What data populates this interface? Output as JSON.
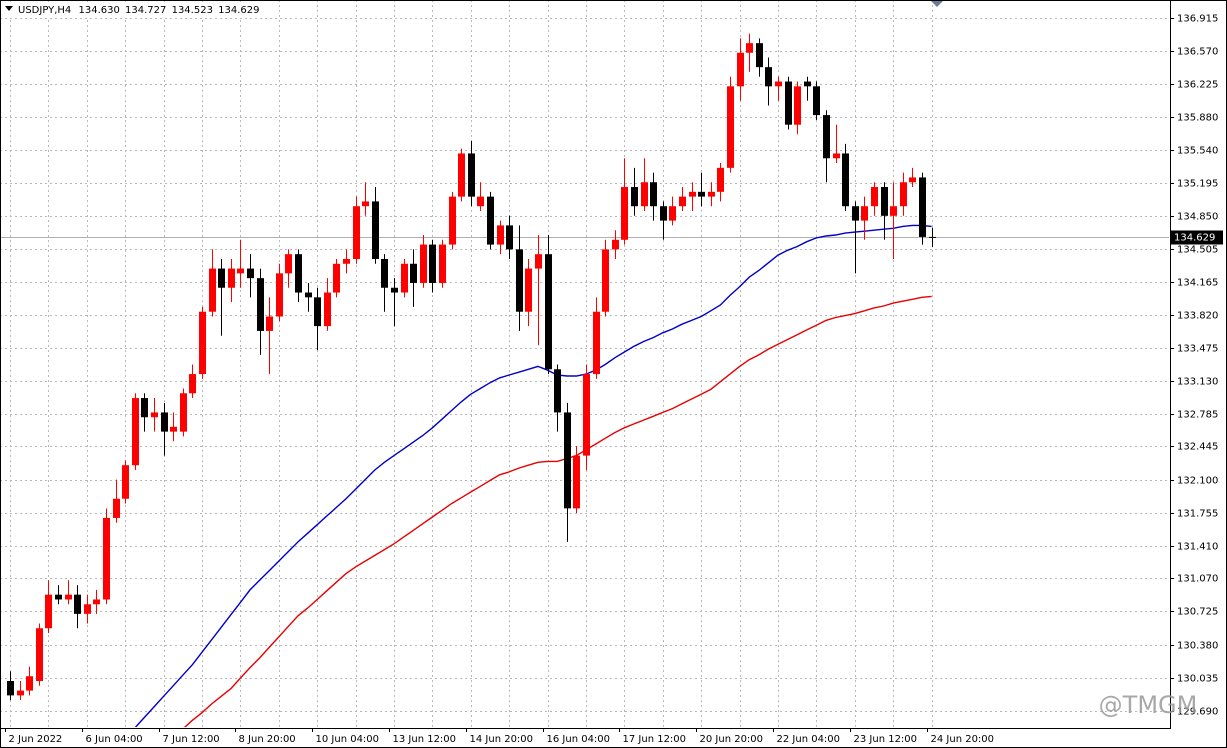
{
  "chart_data": {
    "type": "candlestick",
    "title": "USDJPY,H4",
    "quote_labels": [
      "134.630",
      "134.727",
      "134.523",
      "134.629"
    ],
    "watermark": "@TMGM",
    "up_color": "#ff0000",
    "down_color": "#000000",
    "grid": true,
    "ylim": [
      129.51,
      137.1
    ],
    "yticks": [
      136.915,
      {
        "value": 136.57,
        "label": "136.570"
      },
      136.225,
      {
        "value": 135.88,
        "label": "135.880"
      },
      {
        "value": 135.54,
        "label": "135.540"
      },
      135.195,
      {
        "value": 134.85,
        "label": "134.850"
      },
      134.505,
      134.165,
      {
        "value": 133.82,
        "label": "133.820"
      },
      133.475,
      {
        "value": 133.13,
        "label": "133.130"
      },
      132.785,
      132.445,
      {
        "value": 132.1,
        "label": "132.100"
      },
      131.755,
      {
        "value": 131.41,
        "label": "131.410"
      },
      {
        "value": 131.07,
        "label": "131.070"
      },
      130.725,
      {
        "value": 130.38,
        "label": "130.380"
      },
      130.035,
      {
        "value": 129.69,
        "label": "129.690"
      }
    ],
    "current_price": {
      "value": 134.629,
      "label": "134.629"
    },
    "categories": [
      "2 Jun 2022",
      null,
      null,
      null,
      null,
      null,
      null,
      null,
      "6 Jun 04:00",
      null,
      null,
      null,
      null,
      null,
      null,
      null,
      "7 Jun 12:00",
      null,
      null,
      null,
      null,
      null,
      null,
      null,
      "8 Jun 20:00",
      null,
      null,
      null,
      null,
      null,
      null,
      null,
      "10 Jun 04:00",
      null,
      null,
      null,
      null,
      null,
      null,
      null,
      "13 Jun 12:00",
      null,
      null,
      null,
      null,
      null,
      null,
      null,
      "14 Jun 20:00",
      null,
      null,
      null,
      null,
      null,
      null,
      null,
      "16 Jun 04:00",
      null,
      null,
      null,
      null,
      null,
      null,
      null,
      "17 Jun 12:00",
      null,
      null,
      null,
      null,
      null,
      null,
      null,
      "20 Jun 20:00",
      null,
      null,
      null,
      null,
      null,
      null,
      null,
      "22 Jun 04:00",
      null,
      null,
      null,
      null,
      null,
      null,
      null,
      "23 Jun 12:00",
      null,
      null,
      null,
      null,
      null,
      null,
      null,
      "24 Jun 20:00"
    ],
    "ohlc": {
      "open": [
        130.0,
        129.85,
        129.9,
        130.0,
        130.55,
        130.9,
        130.85,
        130.9,
        130.7,
        130.8,
        130.85,
        131.7,
        131.9,
        132.25,
        132.95,
        132.75,
        132.8,
        132.6,
        132.6,
        133.0,
        133.2,
        133.85,
        134.3,
        134.1,
        134.25,
        134.3,
        134.2,
        133.65,
        133.8,
        134.25,
        134.45,
        134.05,
        134.0,
        133.7,
        134.05,
        134.35,
        134.4,
        134.95,
        135.0,
        134.4,
        134.1,
        134.05,
        134.35,
        134.15,
        134.55,
        134.15,
        134.55,
        135.05,
        135.5,
        134.95,
        135.05,
        134.55,
        134.75,
        134.5,
        133.85,
        134.3,
        134.45,
        133.25,
        132.8,
        131.8,
        132.35,
        133.2,
        133.85,
        134.5,
        134.6,
        135.15,
        134.95,
        135.2,
        134.95,
        134.8,
        134.95,
        135.05,
        135.1,
        135.05,
        135.1,
        135.35,
        136.2,
        136.55,
        136.65,
        136.4,
        136.2,
        136.25,
        135.8,
        136.25,
        136.2,
        135.9,
        135.45,
        135.5,
        134.95,
        134.8,
        134.95,
        135.15,
        134.85,
        134.95,
        135.2,
        135.25,
        134.63
      ],
      "high": [
        130.1,
        130.0,
        130.15,
        130.6,
        131.05,
        131.0,
        131.05,
        131.0,
        130.9,
        130.95,
        131.8,
        132.1,
        132.3,
        133.0,
        133.0,
        132.95,
        132.9,
        132.8,
        133.05,
        133.3,
        133.9,
        134.5,
        134.4,
        134.4,
        134.6,
        134.45,
        134.3,
        134.0,
        134.35,
        134.5,
        134.5,
        134.15,
        134.1,
        134.2,
        134.4,
        134.5,
        135.05,
        135.2,
        135.15,
        134.45,
        134.2,
        134.4,
        134.5,
        134.65,
        134.6,
        134.6,
        135.1,
        135.55,
        135.63,
        135.2,
        135.1,
        134.8,
        134.85,
        134.75,
        134.4,
        134.65,
        134.65,
        133.3,
        132.9,
        132.45,
        133.3,
        134.0,
        134.6,
        134.7,
        135.45,
        135.35,
        135.45,
        135.3,
        135.0,
        135.05,
        135.15,
        135.2,
        135.3,
        135.2,
        135.4,
        136.3,
        136.7,
        136.75,
        136.7,
        136.5,
        136.3,
        136.3,
        136.25,
        136.3,
        136.25,
        135.95,
        135.8,
        135.6,
        135.0,
        135.05,
        135.2,
        135.2,
        135.2,
        135.3,
        135.35,
        135.3,
        134.727
      ],
      "low": [
        129.8,
        129.8,
        129.85,
        129.95,
        130.5,
        130.8,
        130.8,
        130.55,
        130.6,
        130.7,
        130.8,
        131.65,
        131.85,
        132.2,
        132.6,
        132.6,
        132.35,
        132.5,
        132.55,
        132.95,
        133.15,
        133.8,
        133.6,
        133.95,
        134.1,
        134.0,
        133.4,
        133.2,
        133.75,
        134.1,
        133.95,
        133.85,
        133.45,
        133.65,
        134.0,
        134.25,
        134.35,
        134.85,
        134.35,
        133.85,
        133.7,
        134.0,
        133.9,
        134.1,
        134.05,
        134.1,
        134.5,
        135.0,
        134.95,
        134.9,
        134.5,
        134.45,
        134.4,
        133.65,
        133.7,
        133.5,
        133.2,
        132.6,
        131.45,
        131.75,
        132.2,
        133.15,
        133.8,
        134.4,
        134.55,
        134.85,
        134.9,
        134.8,
        134.6,
        134.75,
        134.9,
        134.9,
        134.95,
        134.95,
        135.0,
        135.3,
        136.05,
        136.35,
        136.3,
        136.0,
        136.05,
        135.75,
        135.7,
        136.05,
        135.85,
        135.2,
        135.4,
        134.9,
        134.25,
        134.6,
        134.85,
        134.6,
        134.4,
        134.85,
        135.15,
        134.55,
        134.523
      ],
      "close": [
        129.85,
        129.9,
        130.05,
        130.55,
        130.9,
        130.85,
        130.9,
        130.7,
        130.8,
        130.85,
        131.7,
        131.9,
        132.25,
        132.95,
        132.75,
        132.8,
        132.6,
        132.65,
        133.0,
        133.2,
        133.85,
        134.3,
        134.1,
        134.3,
        134.3,
        134.2,
        133.65,
        133.8,
        134.25,
        134.45,
        134.05,
        134.0,
        133.7,
        134.05,
        134.35,
        134.4,
        134.95,
        135.0,
        134.4,
        134.1,
        134.05,
        134.35,
        134.15,
        134.55,
        134.15,
        134.55,
        135.05,
        135.5,
        135.05,
        135.05,
        134.55,
        134.75,
        134.5,
        133.85,
        134.3,
        134.45,
        133.25,
        132.8,
        131.8,
        132.35,
        133.2,
        133.85,
        134.5,
        134.6,
        135.15,
        134.95,
        135.2,
        134.95,
        134.8,
        134.95,
        135.05,
        135.1,
        135.05,
        135.1,
        135.35,
        136.2,
        136.55,
        136.65,
        136.4,
        136.2,
        136.25,
        135.8,
        136.2,
        136.2,
        135.9,
        135.45,
        135.5,
        134.95,
        134.8,
        134.95,
        135.15,
        134.85,
        134.95,
        135.2,
        135.25,
        134.63,
        134.629
      ]
    },
    "lines": [
      {
        "color": "#0000c8",
        "values": [
          null,
          null,
          null,
          null,
          null,
          null,
          null,
          null,
          null,
          null,
          null,
          null,
          null,
          129.51,
          129.62,
          129.73,
          129.84,
          129.95,
          130.06,
          130.17,
          130.3,
          130.43,
          130.56,
          130.69,
          130.82,
          130.95,
          131.05,
          131.15,
          131.25,
          131.35,
          131.45,
          131.54,
          131.63,
          131.72,
          131.81,
          131.9,
          132.0,
          132.1,
          132.2,
          132.28,
          132.35,
          132.42,
          132.49,
          132.56,
          132.64,
          132.73,
          132.82,
          132.91,
          132.99,
          133.05,
          133.11,
          133.16,
          133.19,
          133.22,
          133.25,
          133.28,
          133.24,
          133.19,
          133.18,
          133.18,
          133.2,
          133.24,
          133.3,
          133.37,
          133.43,
          133.49,
          133.54,
          133.58,
          133.63,
          133.67,
          133.72,
          133.76,
          133.8,
          133.86,
          133.92,
          134.02,
          134.11,
          134.21,
          134.28,
          134.36,
          134.44,
          134.49,
          134.53,
          134.58,
          134.62,
          134.64,
          134.65,
          134.67,
          134.68,
          134.69,
          134.7,
          134.71,
          134.72,
          134.74,
          134.75,
          134.75,
          134.74
        ]
      },
      {
        "color": "#e80000",
        "values": [
          null,
          null,
          null,
          null,
          null,
          null,
          null,
          null,
          null,
          null,
          null,
          null,
          null,
          null,
          null,
          null,
          null,
          null,
          129.5,
          129.59,
          129.67,
          129.76,
          129.84,
          129.92,
          130.03,
          130.14,
          130.24,
          130.35,
          130.46,
          130.57,
          130.68,
          130.76,
          130.85,
          130.94,
          131.03,
          131.12,
          131.19,
          131.25,
          131.31,
          131.37,
          131.43,
          131.5,
          131.57,
          131.64,
          131.71,
          131.78,
          131.85,
          131.91,
          131.97,
          132.03,
          132.09,
          132.15,
          132.18,
          132.22,
          132.25,
          132.28,
          132.29,
          132.29,
          132.32,
          132.35,
          132.41,
          132.47,
          132.53,
          132.59,
          132.64,
          132.68,
          132.72,
          132.76,
          132.8,
          132.84,
          132.89,
          132.94,
          132.99,
          133.04,
          133.12,
          133.2,
          133.28,
          133.35,
          133.4,
          133.46,
          133.51,
          133.56,
          133.61,
          133.66,
          133.71,
          133.76,
          133.79,
          133.81,
          133.83,
          133.86,
          133.89,
          133.91,
          133.94,
          133.96,
          133.98,
          134.0,
          134.01
        ]
      }
    ]
  }
}
